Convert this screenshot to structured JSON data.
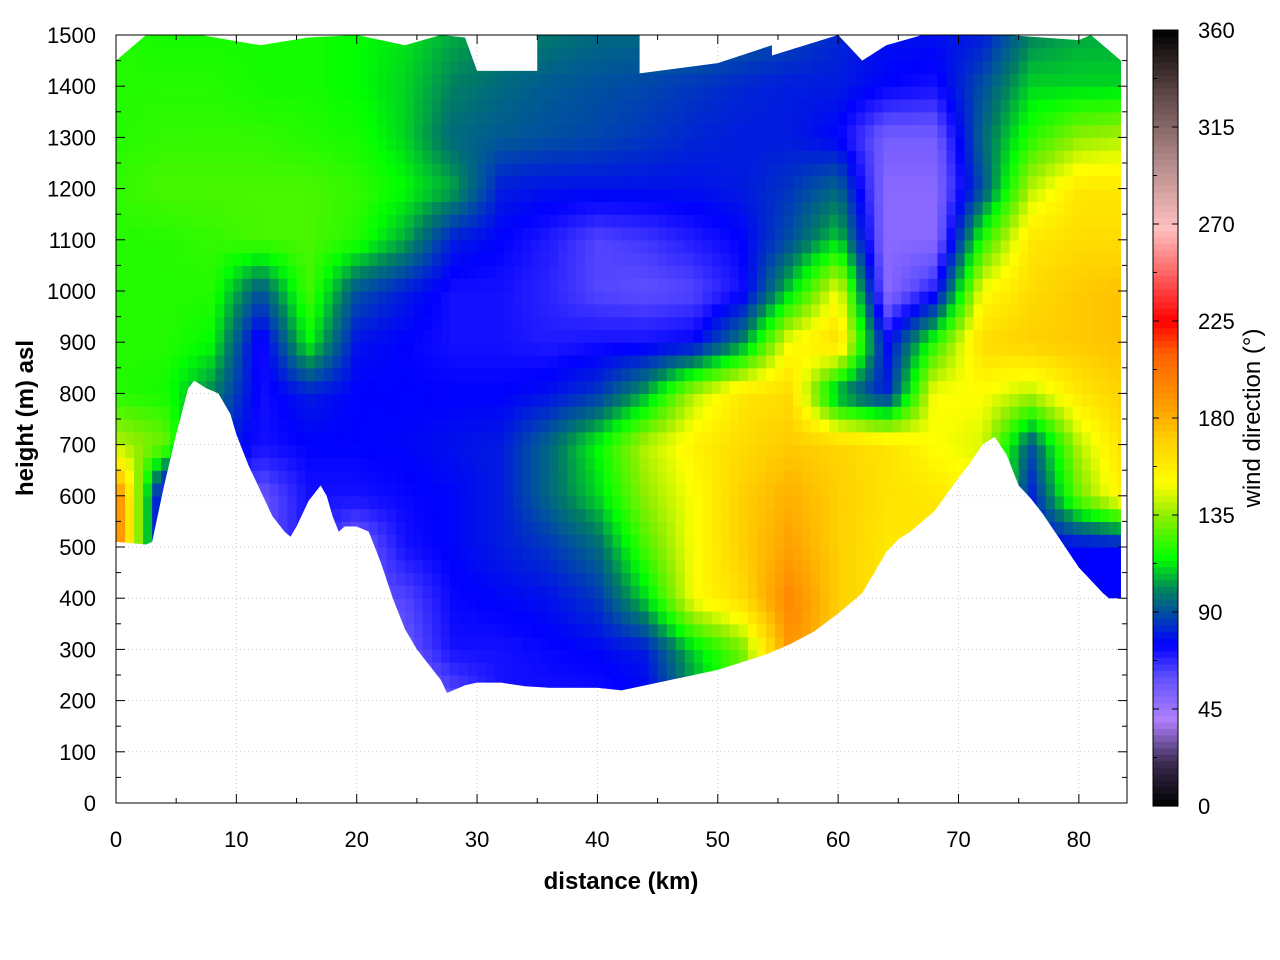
{
  "chart_data": {
    "type": "heatmap",
    "title": "",
    "xlabel": "distance (km)",
    "ylabel": "height (m) asl",
    "colorbar_label": "wind direction (°)",
    "xlim": [
      0,
      84
    ],
    "ylim": [
      0,
      1500
    ],
    "clim": [
      0,
      360
    ],
    "xticks": [
      "0",
      "10",
      "20",
      "30",
      "40",
      "50",
      "60",
      "70",
      "80"
    ],
    "yticks": [
      "0",
      "100",
      "200",
      "300",
      "400",
      "500",
      "600",
      "700",
      "800",
      "900",
      "1000",
      "1100",
      "1200",
      "1300",
      "1400",
      "1500"
    ],
    "cticks": [
      "0",
      "45",
      "90",
      "135",
      "180",
      "225",
      "270",
      "315",
      "360"
    ],
    "grid": true,
    "colormap": [
      [
        0,
        "#000000"
      ],
      [
        20,
        "#3a2a50"
      ],
      [
        40,
        "#b080ff"
      ],
      [
        60,
        "#6050ff"
      ],
      [
        75,
        "#0000ff"
      ],
      [
        90,
        "#0050a0"
      ],
      [
        100,
        "#008060"
      ],
      [
        115,
        "#00ff00"
      ],
      [
        135,
        "#90ee00"
      ],
      [
        150,
        "#ffff00"
      ],
      [
        170,
        "#ffd000"
      ],
      [
        185,
        "#ffa000"
      ],
      [
        210,
        "#ff6000"
      ],
      [
        225,
        "#ff0000"
      ],
      [
        250,
        "#ff7070"
      ],
      [
        268,
        "#ffc0c0"
      ],
      [
        300,
        "#b08888"
      ],
      [
        330,
        "#604848"
      ],
      [
        360,
        "#000000"
      ]
    ],
    "grid_x_km": [
      0,
      4,
      8,
      12,
      16,
      20,
      24,
      28,
      32,
      36,
      40,
      44,
      48,
      52,
      56,
      60,
      64,
      68,
      72,
      76,
      80,
      84
    ],
    "grid_height_m": [
      1500,
      1400,
      1300,
      1200,
      1100,
      1000,
      900,
      800,
      700,
      600,
      500,
      400,
      300,
      200
    ],
    "wind_direction_deg": [
      [
        120,
        118,
        118,
        118,
        118,
        115,
        112,
        105,
        100,
        98,
        95,
        95,
        95,
        92,
        88,
        82,
        78,
        78,
        80,
        100,
        105,
        105
      ],
      [
        120,
        120,
        120,
        118,
        118,
        115,
        110,
        100,
        95,
        92,
        90,
        88,
        85,
        82,
        80,
        80,
        75,
        72,
        90,
        110,
        110,
        110
      ],
      [
        120,
        122,
        122,
        122,
        120,
        118,
        110,
        95,
        92,
        90,
        88,
        85,
        82,
        80,
        80,
        75,
        55,
        55,
        95,
        120,
        135,
        140
      ],
      [
        122,
        125,
        125,
        125,
        125,
        122,
        115,
        105,
        80,
        78,
        78,
        78,
        78,
        80,
        85,
        95,
        50,
        50,
        90,
        140,
        160,
        160
      ],
      [
        120,
        120,
        122,
        125,
        125,
        120,
        105,
        80,
        75,
        70,
        62,
        65,
        70,
        75,
        90,
        110,
        50,
        50,
        120,
        160,
        165,
        165
      ],
      [
        120,
        120,
        120,
        90,
        125,
        90,
        80,
        72,
        72,
        68,
        62,
        60,
        62,
        72,
        110,
        150,
        50,
        70,
        150,
        165,
        172,
        175
      ],
      [
        120,
        120,
        115,
        70,
        115,
        78,
        75,
        72,
        72,
        70,
        72,
        72,
        75,
        100,
        150,
        165,
        75,
        120,
        165,
        170,
        172,
        175
      ],
      [
        120,
        118,
        100,
        72,
        80,
        75,
        75,
        75,
        75,
        78,
        85,
        105,
        140,
        160,
        165,
        100,
        80,
        150,
        150,
        140,
        160,
        170
      ],
      [
        140,
        130,
        85,
        72,
        75,
        75,
        76,
        78,
        80,
        95,
        115,
        140,
        155,
        165,
        172,
        168,
        162,
        150,
        145,
        90,
        140,
        165
      ],
      [
        200,
        60,
        75,
        58,
        72,
        72,
        74,
        76,
        80,
        95,
        110,
        135,
        150,
        170,
        180,
        170,
        162,
        160,
        150,
        80,
        130,
        160
      ],
      [
        200,
        60,
        75,
        58,
        72,
        55,
        72,
        76,
        80,
        85,
        95,
        125,
        150,
        170,
        185,
        170,
        160,
        160,
        150,
        75,
        75,
        75
      ],
      [
        60,
        60,
        60,
        60,
        60,
        60,
        62,
        74,
        76,
        78,
        85,
        110,
        150,
        165,
        195,
        170,
        160,
        160,
        150,
        75,
        75,
        75
      ],
      [
        60,
        60,
        60,
        60,
        60,
        55,
        58,
        72,
        72,
        74,
        76,
        80,
        110,
        130,
        190,
        170,
        160,
        160,
        150,
        75,
        75,
        75
      ],
      [
        50,
        50,
        50,
        50,
        50,
        50,
        50,
        60,
        72,
        72,
        72,
        75,
        100,
        130,
        190,
        170,
        160,
        160,
        150,
        75,
        75,
        75
      ]
    ],
    "terrain_km_m": [
      [
        0,
        510
      ],
      [
        2.5,
        505
      ],
      [
        3,
        510
      ],
      [
        4,
        620
      ],
      [
        5,
        720
      ],
      [
        6,
        810
      ],
      [
        6.5,
        825
      ],
      [
        7.5,
        810
      ],
      [
        8.5,
        800
      ],
      [
        9.5,
        760
      ],
      [
        10,
        720
      ],
      [
        11,
        660
      ],
      [
        12,
        610
      ],
      [
        13,
        560
      ],
      [
        14,
        530
      ],
      [
        14.5,
        520
      ],
      [
        15,
        540
      ],
      [
        16,
        590
      ],
      [
        17,
        620
      ],
      [
        17.5,
        600
      ],
      [
        18,
        560
      ],
      [
        18.5,
        530
      ],
      [
        19,
        540
      ],
      [
        20,
        540
      ],
      [
        21,
        530
      ],
      [
        22,
        470
      ],
      [
        23,
        400
      ],
      [
        24,
        340
      ],
      [
        25,
        300
      ],
      [
        26,
        270
      ],
      [
        27,
        240
      ],
      [
        27.5,
        215
      ],
      [
        28,
        220
      ],
      [
        29,
        230
      ],
      [
        30,
        235
      ],
      [
        32,
        235
      ],
      [
        34,
        228
      ],
      [
        36,
        225
      ],
      [
        38,
        225
      ],
      [
        40,
        225
      ],
      [
        42,
        220
      ],
      [
        44,
        230
      ],
      [
        46,
        240
      ],
      [
        48,
        250
      ],
      [
        50,
        260
      ],
      [
        52,
        275
      ],
      [
        54,
        290
      ],
      [
        56,
        310
      ],
      [
        58,
        335
      ],
      [
        60,
        370
      ],
      [
        61,
        390
      ],
      [
        62,
        410
      ],
      [
        63,
        450
      ],
      [
        64,
        490
      ],
      [
        65,
        515
      ],
      [
        66,
        530
      ],
      [
        68,
        570
      ],
      [
        70,
        635
      ],
      [
        71,
        665
      ],
      [
        72,
        700
      ],
      [
        73,
        715
      ],
      [
        74,
        680
      ],
      [
        75,
        620
      ],
      [
        76,
        595
      ],
      [
        77,
        565
      ],
      [
        78,
        530
      ],
      [
        79,
        495
      ],
      [
        80,
        460
      ],
      [
        81,
        435
      ],
      [
        82,
        410
      ],
      [
        82.5,
        400
      ],
      [
        83.5,
        400
      ]
    ],
    "data_top_km_m": [
      [
        0,
        1450
      ],
      [
        2.5,
        1500
      ],
      [
        7,
        1500
      ],
      [
        12,
        1480
      ],
      [
        16,
        1495
      ],
      [
        20,
        1500
      ],
      [
        24,
        1480
      ],
      [
        27,
        1500
      ],
      [
        29,
        1495
      ],
      [
        30,
        1430
      ],
      [
        35,
        1430
      ],
      [
        35,
        1500
      ],
      [
        43.5,
        1500
      ],
      [
        43.5,
        1425
      ],
      [
        50,
        1445
      ],
      [
        54.5,
        1480
      ],
      [
        54.5,
        1460
      ],
      [
        60,
        1500
      ],
      [
        62,
        1450
      ],
      [
        64,
        1480
      ],
      [
        67,
        1500
      ],
      [
        74,
        1500
      ],
      [
        80,
        1490
      ],
      [
        81,
        1500
      ],
      [
        83.5,
        1450
      ]
    ]
  }
}
